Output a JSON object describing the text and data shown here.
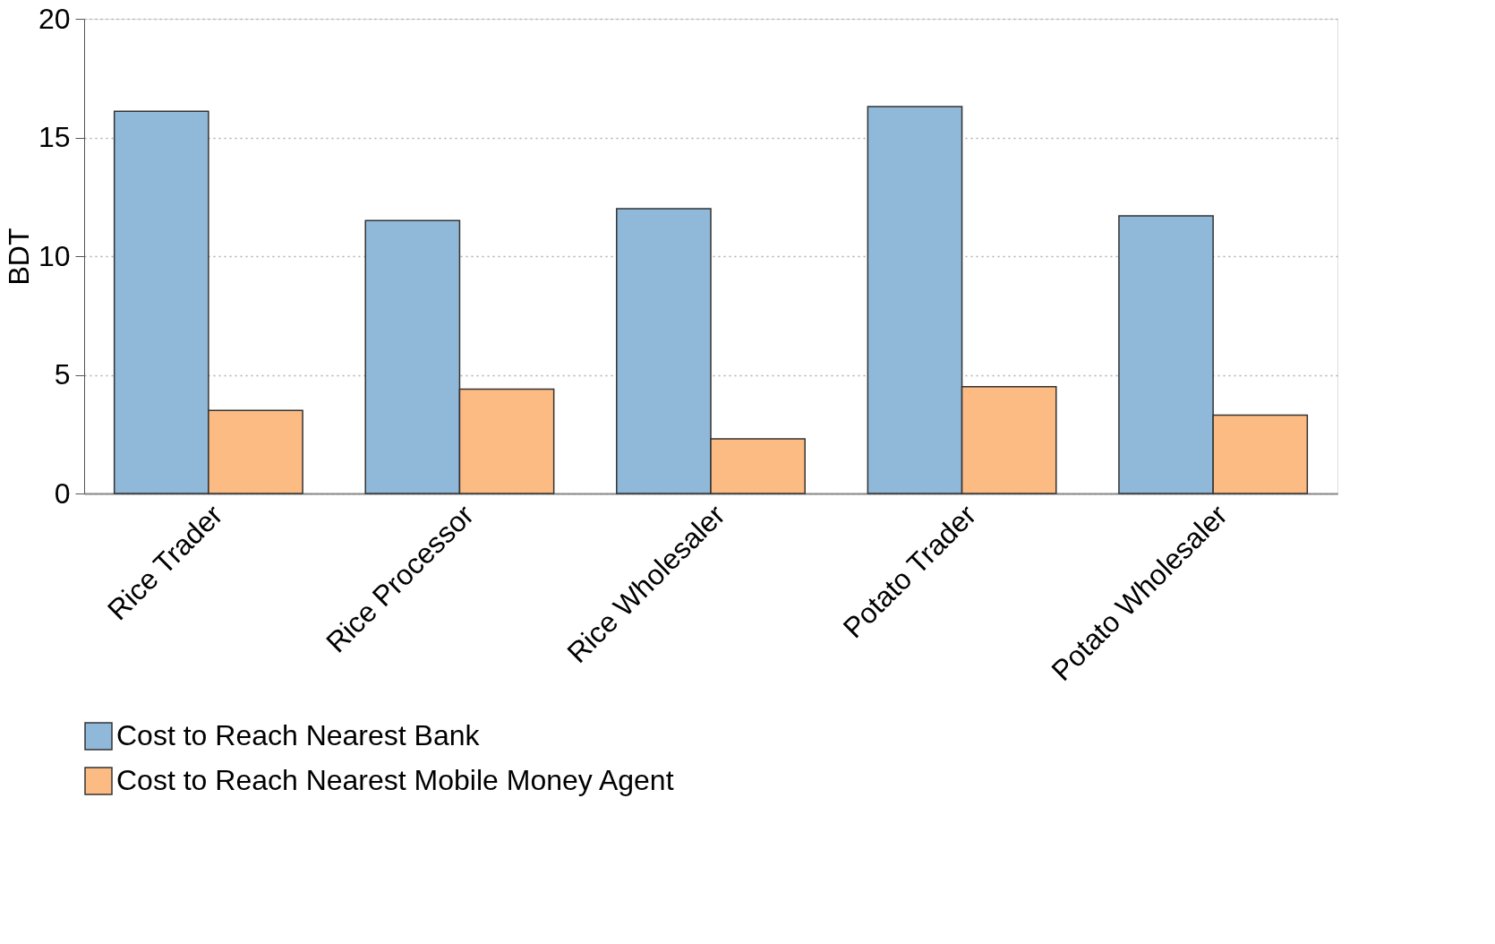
{
  "chart_data": {
    "type": "bar",
    "ylabel": "BDT",
    "categories": [
      "Rice Trader",
      "Rice Processor",
      "Rice Wholesaler",
      "Potato Trader",
      "Potato Wholesaler"
    ],
    "series": [
      {
        "name": "Cost to Reach Nearest Bank",
        "color": "#8fb8d9",
        "values": [
          16.1,
          11.5,
          12.0,
          16.3,
          11.7
        ]
      },
      {
        "name": "Cost to Reach Nearest Mobile Money Agent",
        "color": "#fdbb84",
        "values": [
          3.5,
          4.4,
          2.3,
          4.5,
          3.3
        ]
      }
    ],
    "ylim": [
      0,
      20
    ],
    "yticks": [
      0,
      5,
      10,
      15,
      20
    ],
    "grid": "y",
    "legend": "bottom"
  }
}
